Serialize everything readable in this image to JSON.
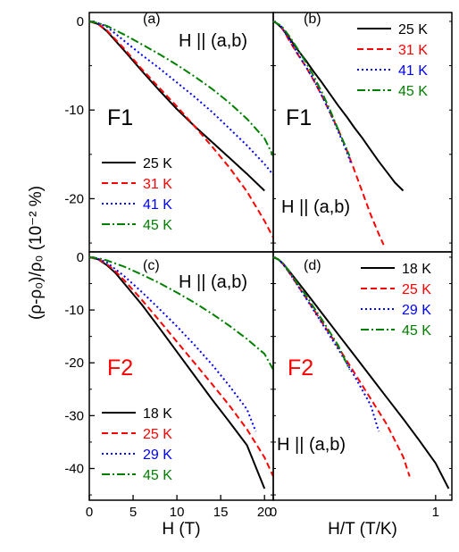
{
  "figure": {
    "ylabel": "(ρ-ρ₀)/ρ₀ (10⁻² %)"
  },
  "chart_data": [
    {
      "id": "a",
      "type": "line",
      "panel_label": "(a)",
      "annotation": "H || (a,b)",
      "sample_label": "F1",
      "sample_color": "#000000",
      "xlabel": "",
      "xlim": [
        0,
        21
      ],
      "ylim": [
        -26,
        1
      ],
      "xticks": [],
      "yticks": [
        0,
        -10,
        -20
      ],
      "legend_position": "bottom-left",
      "series": [
        {
          "name": "25 K",
          "color": "#000000",
          "dash": "solid",
          "x": [
            0,
            1,
            2,
            4,
            6,
            8,
            10,
            12,
            14,
            16,
            18,
            20
          ],
          "y": [
            0,
            -0.3,
            -1.1,
            -3.3,
            -5.6,
            -7.8,
            -9.9,
            -11.8,
            -13.6,
            -15.4,
            -17.2,
            -19.1
          ]
        },
        {
          "name": "31 K",
          "color": "#ff0000",
          "dash": "dashed",
          "x": [
            0,
            1,
            2,
            4,
            6,
            8,
            10,
            12,
            14,
            16,
            18,
            20,
            21
          ],
          "y": [
            0,
            -0.3,
            -1.0,
            -3.1,
            -5.4,
            -7.5,
            -9.6,
            -11.8,
            -14.1,
            -16.5,
            -19.2,
            -22.5,
            -24.4
          ]
        },
        {
          "name": "41 K",
          "color": "#0000ff",
          "dash": "dotted",
          "x": [
            0,
            1,
            2,
            4,
            6,
            8,
            10,
            12,
            14,
            16,
            18,
            20,
            21
          ],
          "y": [
            0,
            -0.2,
            -0.6,
            -2.2,
            -3.8,
            -5.3,
            -6.9,
            -8.5,
            -10.2,
            -12.1,
            -14.0,
            -16.1,
            -17.3
          ]
        },
        {
          "name": "45 K",
          "color": "#008000",
          "dash": "dashdot",
          "x": [
            0,
            1,
            2,
            4,
            6,
            8,
            10,
            12,
            14,
            16,
            18,
            20,
            21
          ],
          "y": [
            0,
            -0.2,
            -0.5,
            -1.5,
            -2.6,
            -3.7,
            -4.9,
            -6.2,
            -7.6,
            -9.2,
            -11.0,
            -13.2,
            -15.2
          ]
        }
      ]
    },
    {
      "id": "b",
      "type": "line",
      "panel_label": "(b)",
      "annotation": "H || (a,b)",
      "sample_label": "F1",
      "sample_color": "#000000",
      "xlabel": "",
      "xlim": [
        0,
        1.1
      ],
      "ylim": [
        -26,
        1
      ],
      "xticks": [],
      "yticks": [],
      "legend_position": "top-right",
      "series": [
        {
          "name": "25 K",
          "color": "#000000",
          "dash": "solid",
          "x": [
            0,
            0.02,
            0.05,
            0.1,
            0.15,
            0.2,
            0.25,
            0.3,
            0.35,
            0.4,
            0.45,
            0.5,
            0.55,
            0.6,
            0.65,
            0.7,
            0.75,
            0.8
          ],
          "y": [
            0,
            -0.2,
            -0.7,
            -1.9,
            -3.2,
            -4.4,
            -5.7,
            -6.9,
            -8.2,
            -9.5,
            -10.7,
            -12.0,
            -13.2,
            -14.5,
            -15.8,
            -17.0,
            -18.2,
            -19.1
          ]
        },
        {
          "name": "31 K",
          "color": "#ff0000",
          "dash": "dashed",
          "x": [
            0,
            0.02,
            0.05,
            0.1,
            0.15,
            0.2,
            0.25,
            0.3,
            0.35,
            0.4,
            0.45,
            0.5,
            0.55,
            0.6,
            0.65,
            0.68
          ],
          "y": [
            0,
            -0.2,
            -0.6,
            -2.2,
            -3.7,
            -5.1,
            -6.7,
            -8.4,
            -10.3,
            -12.2,
            -14.4,
            -16.8,
            -19.3,
            -21.8,
            -24.0,
            -25.2
          ]
        },
        {
          "name": "41 K",
          "color": "#0000ff",
          "dash": "dotted",
          "x": [
            0,
            0.02,
            0.05,
            0.1,
            0.15,
            0.2,
            0.25,
            0.3,
            0.35,
            0.4,
            0.45,
            0.48
          ],
          "y": [
            0,
            -0.2,
            -0.6,
            -2.1,
            -3.6,
            -5.1,
            -6.6,
            -8.4,
            -10.3,
            -12.4,
            -14.6,
            -16.1
          ]
        },
        {
          "name": "45 K",
          "color": "#008000",
          "dash": "dashdot",
          "x": [
            0,
            0.02,
            0.05,
            0.1,
            0.15,
            0.2,
            0.25,
            0.3,
            0.35,
            0.4,
            0.45,
            0.47
          ],
          "y": [
            0,
            -0.2,
            -0.5,
            -1.7,
            -3.1,
            -4.6,
            -6.2,
            -8.0,
            -10.0,
            -12.2,
            -14.3,
            -15.2
          ]
        }
      ]
    },
    {
      "id": "c",
      "type": "line",
      "panel_label": "(c)",
      "annotation": "H || (a,b)",
      "sample_label": "F2",
      "sample_color": "#ff0000",
      "xlabel": "H (T)",
      "xlim": [
        0,
        21
      ],
      "ylim": [
        -46,
        1
      ],
      "xticks": [
        0,
        5,
        10,
        15,
        20
      ],
      "yticks": [
        0,
        -10,
        -20,
        -30,
        -40
      ],
      "legend_position": "bottom-left",
      "series": [
        {
          "name": "18 K",
          "color": "#000000",
          "dash": "solid",
          "x": [
            0,
            1,
            2,
            3,
            4,
            6,
            8,
            10,
            12,
            14,
            16,
            18,
            20
          ],
          "y": [
            0,
            -0.4,
            -1.5,
            -3.0,
            -5.0,
            -9.0,
            -13.4,
            -17.9,
            -22.4,
            -26.9,
            -31.2,
            -35.6,
            -43.8
          ]
        },
        {
          "name": "25 K",
          "color": "#ff0000",
          "dash": "dashed",
          "x": [
            0,
            1,
            2,
            3,
            4,
            6,
            8,
            10,
            12,
            14,
            16,
            18,
            20,
            21
          ],
          "y": [
            0,
            -0.4,
            -1.3,
            -2.7,
            -4.4,
            -8.1,
            -12.0,
            -16.0,
            -20.0,
            -24.0,
            -28.1,
            -32.6,
            -37.9,
            -41.5
          ]
        },
        {
          "name": "29 K",
          "color": "#0000ff",
          "dash": "dotted",
          "x": [
            0,
            1,
            2,
            4,
            6,
            8,
            10,
            12,
            14,
            16,
            18,
            19
          ],
          "y": [
            0,
            -0.3,
            -1.0,
            -3.6,
            -6.6,
            -9.8,
            -13.1,
            -16.6,
            -20.3,
            -24.4,
            -28.8,
            -33.0
          ]
        },
        {
          "name": "45 K",
          "color": "#008000",
          "dash": "dashdot",
          "x": [
            0,
            1,
            2,
            4,
            6,
            8,
            10,
            12,
            14,
            16,
            18,
            20,
            21
          ],
          "y": [
            0,
            -0.2,
            -0.6,
            -1.8,
            -3.3,
            -4.9,
            -6.7,
            -8.6,
            -10.7,
            -13.0,
            -15.5,
            -18.3,
            -21.3
          ]
        }
      ]
    },
    {
      "id": "d",
      "type": "line",
      "panel_label": "(d)",
      "annotation": "H || (a,b)",
      "sample_label": "F2",
      "sample_color": "#ff0000",
      "xlabel": "H/T (T/K)",
      "xlim": [
        0,
        1.1
      ],
      "ylim": [
        -46,
        1
      ],
      "xticks": [
        0,
        1
      ],
      "yticks": [],
      "legend_position": "top-right",
      "series": [
        {
          "name": "18 K",
          "color": "#000000",
          "dash": "solid",
          "x": [
            0,
            0.03,
            0.06,
            0.1,
            0.2,
            0.3,
            0.4,
            0.5,
            0.6,
            0.7,
            0.8,
            0.9,
            1.0,
            1.08
          ],
          "y": [
            0,
            -0.4,
            -1.2,
            -2.7,
            -6.6,
            -10.6,
            -14.6,
            -18.6,
            -22.6,
            -26.6,
            -30.6,
            -34.7,
            -39.0,
            -43.8
          ]
        },
        {
          "name": "25 K",
          "color": "#ff0000",
          "dash": "dashed",
          "x": [
            0,
            0.03,
            0.06,
            0.1,
            0.2,
            0.3,
            0.4,
            0.5,
            0.6,
            0.7,
            0.8,
            0.84
          ],
          "y": [
            0,
            -0.4,
            -1.3,
            -3.0,
            -7.6,
            -12.3,
            -17.0,
            -21.9,
            -26.8,
            -31.7,
            -37.8,
            -41.5
          ]
        },
        {
          "name": "29 K",
          "color": "#0000ff",
          "dash": "dotted",
          "x": [
            0,
            0.03,
            0.06,
            0.1,
            0.2,
            0.3,
            0.4,
            0.5,
            0.6,
            0.65
          ],
          "y": [
            0,
            -0.4,
            -1.3,
            -3.0,
            -7.7,
            -12.5,
            -17.4,
            -22.5,
            -28.0,
            -33.0
          ]
        },
        {
          "name": "45 K",
          "color": "#008000",
          "dash": "dashdot",
          "x": [
            0,
            0.03,
            0.06,
            0.1,
            0.2,
            0.3,
            0.4,
            0.47
          ],
          "y": [
            0,
            -0.4,
            -1.2,
            -2.8,
            -7.2,
            -11.8,
            -16.7,
            -21.3
          ]
        }
      ]
    }
  ]
}
